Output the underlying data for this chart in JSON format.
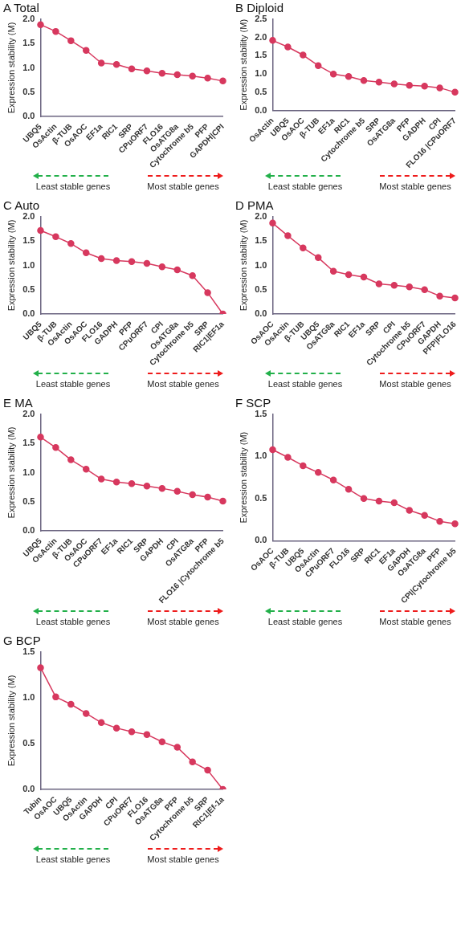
{
  "chart_data": [
    {
      "type": "line",
      "title": "A Total",
      "ylabel": "Expression stability (M)",
      "categories": [
        "UBQ5",
        "OsActin",
        "β-TUB",
        "OsAOC",
        "EF1a",
        "RIC1",
        "SRP",
        "CPuORF7",
        "FLO16",
        "OsATG8a",
        "Cytochrome b5",
        "PFP",
        "GAPDH|CPI"
      ],
      "values": [
        1.89,
        1.75,
        1.56,
        1.36,
        1.1,
        1.07,
        0.98,
        0.94,
        0.89,
        0.86,
        0.83,
        0.79,
        0.73
      ],
      "color": "#d7385e",
      "marker": "circle",
      "ylim": [
        0,
        2
      ],
      "yticks": [
        {
          "value": 0,
          "label": "0.0"
        },
        {
          "value": 0.5,
          "label": "0.5"
        },
        {
          "value": 1,
          "label": "1.0"
        },
        {
          "value": 1.5,
          "label": "1.5"
        },
        {
          "value": 2,
          "label": "2.0"
        }
      ],
      "annotations": [
        "Least stable genes",
        "Most stable genes"
      ]
    },
    {
      "type": "line",
      "title": "B Diploid",
      "ylabel": "Expression stability (M)",
      "categories": [
        "OsActin",
        "UBQ5",
        "OsAOC",
        "β-TUB",
        "EF1a",
        "RIC1",
        "Cytochrome b5",
        "SRP",
        "OsATG8a",
        "PFP",
        "GADPH",
        "CPI",
        "FLO16 |CPuORF7"
      ],
      "values": [
        1.92,
        1.74,
        1.52,
        1.23,
        1.0,
        0.93,
        0.82,
        0.78,
        0.73,
        0.69,
        0.67,
        0.62,
        0.5
      ],
      "color": "#d7385e",
      "marker": "circle",
      "ylim": [
        0,
        2.5
      ],
      "yticks": [
        {
          "value": 0,
          "label": "0.0"
        },
        {
          "value": 0.5,
          "label": "0.5"
        },
        {
          "value": 1,
          "label": "1.0"
        },
        {
          "value": 1.5,
          "label": "1.5"
        },
        {
          "value": 2,
          "label": "2.0"
        },
        {
          "value": 2.5,
          "label": "2.5"
        }
      ],
      "annotations": [
        "Least stable genes",
        "Most stable genes"
      ]
    },
    {
      "type": "line",
      "title": "C Auto",
      "ylabel": "Expression stability (M)",
      "categories": [
        "UBQ5",
        "β-TUB",
        "OsActin",
        "OsAOC",
        "FLO16",
        "GADPH",
        "PFP",
        "CPuORF7",
        "CPI",
        "OsATG8a",
        "Cytochrome b5",
        "SRP",
        "RIC1|EF1a"
      ],
      "values": [
        1.72,
        1.59,
        1.45,
        1.26,
        1.14,
        1.1,
        1.08,
        1.04,
        0.97,
        0.91,
        0.79,
        0.44,
        0
      ],
      "color": "#d7385e",
      "marker": "circle",
      "ylim": [
        0,
        2
      ],
      "yticks": [
        {
          "value": 0,
          "label": "0.0"
        },
        {
          "value": 0.5,
          "label": "0.5"
        },
        {
          "value": 1,
          "label": "1.0"
        },
        {
          "value": 1.5,
          "label": "1.5"
        },
        {
          "value": 2,
          "label": "2.0"
        }
      ],
      "annotations": [
        "Least stable genes",
        "Most stable genes"
      ]
    },
    {
      "type": "line",
      "title": "D PMA",
      "ylabel": "Expression stability (M)",
      "categories": [
        "OsAOC",
        "OsActin",
        "β-TUB",
        "UBQ5",
        "OsATG8a",
        "RIC1",
        "EF1a",
        "SRP",
        "CPI",
        "Cytochrome b5",
        "CPuORF7",
        "GAPDH",
        "PFP|FLO16"
      ],
      "values": [
        1.87,
        1.61,
        1.36,
        1.16,
        0.88,
        0.81,
        0.76,
        0.62,
        0.59,
        0.56,
        0.5,
        0.37,
        0.33
      ],
      "color": "#d7385e",
      "marker": "circle",
      "ylim": [
        0,
        2
      ],
      "yticks": [
        {
          "value": 0,
          "label": "0.0"
        },
        {
          "value": 0.5,
          "label": "0.5"
        },
        {
          "value": 1,
          "label": "1.0"
        },
        {
          "value": 1.5,
          "label": "1.5"
        },
        {
          "value": 2,
          "label": "2.0"
        }
      ],
      "annotations": [
        "Least stable genes",
        "Most stable genes"
      ]
    },
    {
      "type": "line",
      "title": "E MA",
      "ylabel": "Expression stability (M)",
      "categories": [
        "UBQ5",
        "OsActin",
        "β-TUB",
        "OsAOC",
        "CPuORF7",
        "EF1a",
        "RIC1",
        "SRP",
        "GAPDH",
        "CPI",
        "OsATG8a",
        "PFP",
        "FLO16 |Cytochrome b5"
      ],
      "values": [
        1.61,
        1.43,
        1.22,
        1.06,
        0.89,
        0.84,
        0.81,
        0.77,
        0.73,
        0.68,
        0.62,
        0.58,
        0.51
      ],
      "color": "#d7385e",
      "marker": "circle",
      "ylim": [
        0,
        2
      ],
      "yticks": [
        {
          "value": 0,
          "label": "0.0"
        },
        {
          "value": 0.5,
          "label": "0.5"
        },
        {
          "value": 1,
          "label": "1.0"
        },
        {
          "value": 1.5,
          "label": "1.5"
        },
        {
          "value": 2,
          "label": "2.0"
        }
      ],
      "annotations": [
        "Least stable genes",
        "Most stable genes"
      ]
    },
    {
      "type": "line",
      "title": "F SCP",
      "ylabel": "Expression stability (M)",
      "categories": [
        "OsAOC",
        "β-TUB",
        "UBQ5",
        "OsActin",
        "CPuORF7",
        "FLO16",
        "SRP",
        "RIC1",
        "EF1a",
        "GAPDH",
        "OsATG8a",
        "PFP",
        "CPI|Cytochrome b5"
      ],
      "values": [
        1.08,
        0.99,
        0.89,
        0.81,
        0.72,
        0.61,
        0.5,
        0.47,
        0.45,
        0.36,
        0.3,
        0.23,
        0.2
      ],
      "color": "#d7385e",
      "marker": "circle",
      "ylim": [
        0,
        1.5
      ],
      "yticks": [
        {
          "value": 0,
          "label": "0.0"
        },
        {
          "value": 0.5,
          "label": "0.5"
        },
        {
          "value": 1,
          "label": "1.0"
        },
        {
          "value": 1.5,
          "label": "1.5"
        }
      ],
      "annotations": [
        "Least stable genes",
        "Most stable genes"
      ]
    },
    {
      "type": "line",
      "title": "G BCP",
      "ylabel": "Expression stability (M)",
      "categories": [
        "Tubin",
        "OsAOC",
        "UBQ5",
        "OsActin",
        "GAPDH",
        "CPI",
        "CPuORF7",
        "FLO16",
        "OsATG8a",
        "PFP",
        "Cytochrome b5",
        "SRP",
        "RIC1|Ef-1a"
      ],
      "values": [
        1.33,
        1.01,
        0.93,
        0.83,
        0.73,
        0.67,
        0.63,
        0.6,
        0.52,
        0.46,
        0.3,
        0.21,
        0
      ],
      "color": "#d7385e",
      "marker": "circle",
      "ylim": [
        0,
        1.5
      ],
      "yticks": [
        {
          "value": 0,
          "label": "0.0"
        },
        {
          "value": 0.5,
          "label": "0.5"
        },
        {
          "value": 1,
          "label": "1.0"
        },
        {
          "value": 1.5,
          "label": "1.5"
        }
      ],
      "annotations": [
        "Least stable genes",
        "Most stable genes"
      ]
    }
  ]
}
